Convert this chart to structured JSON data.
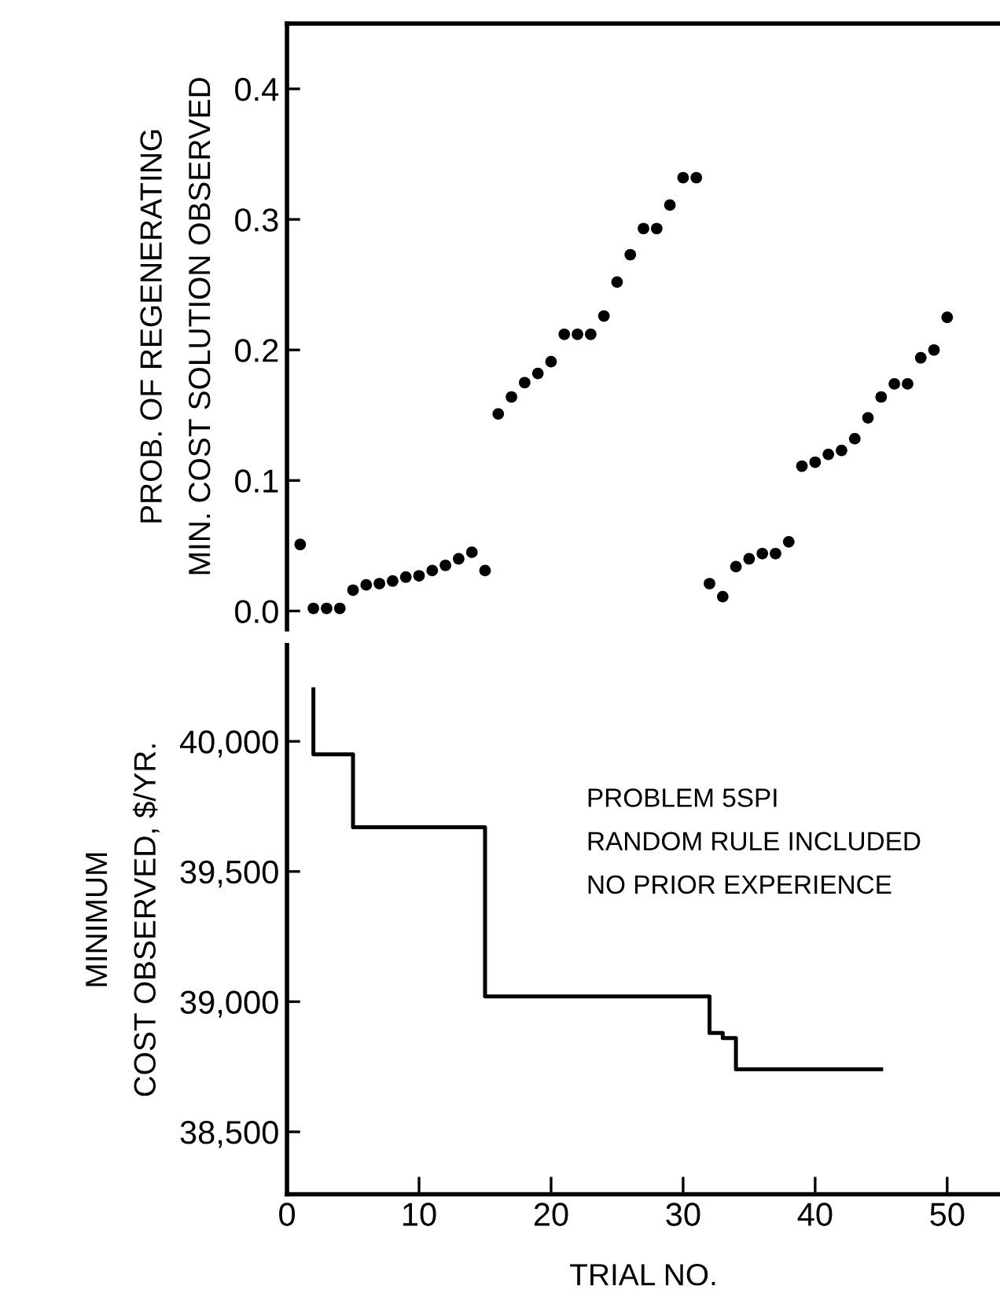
{
  "chart_data": [
    {
      "type": "scatter",
      "ylabel": "PROB. OF REGENERATING\nMIN. COST SOLUTION OBSERVED",
      "x": [
        1,
        2,
        3,
        4,
        5,
        6,
        7,
        8,
        9,
        10,
        11,
        12,
        13,
        14,
        15,
        16,
        17,
        18,
        19,
        20,
        21,
        22,
        23,
        24,
        25,
        26,
        27,
        28,
        29,
        30,
        31,
        32,
        33,
        34,
        35,
        36,
        37,
        38,
        39,
        40,
        41,
        42,
        43,
        44,
        45,
        46,
        47,
        48,
        49,
        50
      ],
      "series": [
        {
          "color": "#000000",
          "values": [
            0.051,
            0.002,
            0.002,
            0.002,
            0.016,
            0.02,
            0.021,
            0.023,
            0.026,
            0.027,
            0.031,
            0.035,
            0.04,
            0.045,
            0.031,
            0.151,
            0.164,
            0.175,
            0.182,
            0.191,
            0.212,
            0.212,
            0.212,
            0.226,
            0.252,
            0.273,
            0.293,
            0.293,
            0.311,
            0.332,
            0.332,
            0.021,
            0.011,
            0.034,
            0.04,
            0.044,
            0.044,
            0.053,
            0.111,
            0.114,
            0.12,
            0.123,
            0.132,
            0.148,
            0.164,
            0.174,
            0.174,
            0.194,
            0.2,
            0.225
          ]
        }
      ],
      "marker": "circle",
      "xlim": [
        0,
        54
      ],
      "ylim": [
        -0.014,
        0.45
      ],
      "yticks": [
        {
          "value": 0,
          "label": "0.0"
        },
        0.1,
        0.2,
        0.3,
        0.4
      ],
      "tick_labels": "y",
      "grid": false,
      "legend": false
    },
    {
      "type": "step",
      "ylabel": "MINIMUM\nCOST OBSERVED, $/YR.",
      "xlabel": "TRIAL NO.",
      "x": [
        2,
        2,
        5,
        15,
        32,
        33,
        34,
        45
      ],
      "series": [
        {
          "color": "#000000",
          "values": [
            40200,
            39950,
            39670,
            39020,
            38880,
            38860,
            38740,
            38740
          ]
        }
      ],
      "xlim": [
        0,
        54
      ],
      "xticks": [
        0,
        10,
        20,
        30,
        40,
        50
      ],
      "ylim": [
        38260,
        40370
      ],
      "yticks": [
        {
          "value": 38500,
          "label": "38,500"
        },
        {
          "value": 39000,
          "label": "39,000"
        },
        {
          "value": 39500,
          "label": "39,500"
        },
        {
          "value": 40000,
          "label": "40,000"
        }
      ],
      "annotations": [
        "PROBLEM 5SPI\nRANDOM RULE INCLUDED\nNO PRIOR EXPERIENCE"
      ],
      "grid": false,
      "legend": false,
      "marker": "none",
      "line_style": "solid"
    }
  ]
}
